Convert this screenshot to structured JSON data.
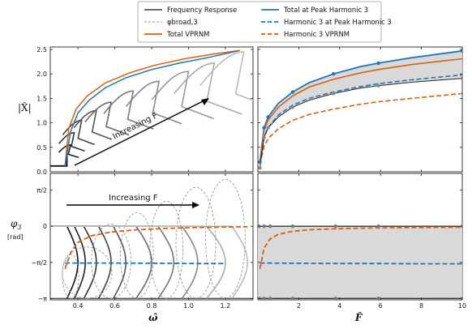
{
  "legend": {
    "items": [
      {
        "label": "Frequency Response",
        "color": "#5a5a5a",
        "dash": "solid"
      },
      {
        "label": "Total at Peak Harmonic 3",
        "color": "#1f77b4",
        "dash": "solid"
      },
      {
        "label": "φbroad,3",
        "color": "#9a9a9a",
        "dash": "dashed-thin"
      },
      {
        "label": "Harmonic 3 at Peak Harmonic 3",
        "color": "#1f77b4",
        "dash": "dashed"
      },
      {
        "label": "Total VPRNM",
        "color": "#d95f0e",
        "dash": "solid"
      },
      {
        "label": "Harmonic 3 VPRNM",
        "color": "#d95f0e",
        "dash": "dashed"
      }
    ]
  },
  "annotations": {
    "top_left": "Increasing F",
    "bottom_left": "Increasing F"
  },
  "colors": {
    "blue": "#1f77b4",
    "orange": "#d95f0e",
    "shade": "#d9d9d9"
  },
  "chart_data": [
    {
      "panel": "top-left",
      "type": "line",
      "xlabel": "ω̂",
      "ylabel": "|X̂|",
      "xlim": [
        0.25,
        1.35
      ],
      "ylim": [
        0,
        2.55
      ],
      "yticks": [
        "0.0",
        "0.5",
        "1.0",
        "1.5",
        "2.0",
        "2.5"
      ],
      "series": [
        {
          "name": "Total at Peak Harmonic 3",
          "x": [
            0.33,
            0.36,
            0.4,
            0.46,
            0.55,
            0.66,
            0.8,
            0.95,
            1.1,
            1.27
          ],
          "y": [
            0.12,
            0.82,
            1.2,
            1.46,
            1.72,
            1.92,
            2.09,
            2.22,
            2.33,
            2.47
          ]
        },
        {
          "name": "Total VPRNM",
          "x": [
            0.33,
            0.35,
            0.39,
            0.45,
            0.55,
            0.68,
            0.82,
            0.98,
            1.14,
            1.28
          ],
          "y": [
            0.12,
            0.88,
            1.28,
            1.55,
            1.82,
            2.02,
            2.18,
            2.31,
            2.41,
            2.48
          ]
        }
      ]
    },
    {
      "panel": "top-right",
      "type": "line",
      "xlabel": "F̂",
      "xlim": [
        0,
        10
      ],
      "ylim": [
        0,
        2.55
      ],
      "yticks": [
        "0.0",
        "0.5",
        "1.0",
        "1.5",
        "2.0",
        "2.5"
      ],
      "xticks": [
        "2",
        "4",
        "6",
        "8",
        "10"
      ],
      "series": [
        {
          "name": "Total at Peak Harmonic 3",
          "x": [
            0.1,
            0.3,
            0.5,
            1.0,
            1.7,
            2.5,
            3.7,
            5.0,
            5.9,
            7.5,
            10
          ],
          "y": [
            0.2,
            0.9,
            1.12,
            1.4,
            1.63,
            1.82,
            2.0,
            2.15,
            2.22,
            2.33,
            2.47
          ]
        },
        {
          "name": "Total VPRNM",
          "x": [
            0.1,
            0.3,
            0.5,
            1.0,
            1.7,
            2.5,
            3.7,
            5.0,
            5.9,
            7.5,
            10
          ],
          "y": [
            0.2,
            0.86,
            1.06,
            1.32,
            1.55,
            1.73,
            1.89,
            2.02,
            2.09,
            2.19,
            2.31
          ]
        },
        {
          "name": "Harmonic 3 at Peak Harmonic 3",
          "x": [
            0.1,
            0.3,
            0.5,
            1.0,
            1.7,
            2.5,
            3.7,
            5.0,
            5.9,
            7.5,
            10
          ],
          "y": [
            0.18,
            0.7,
            0.9,
            1.16,
            1.36,
            1.5,
            1.63,
            1.74,
            1.8,
            1.88,
            1.98
          ]
        },
        {
          "name": "Harmonic 3 VPRNM",
          "x": [
            0.1,
            0.3,
            0.5,
            1.0,
            1.7,
            2.5,
            3.7,
            5.0,
            5.9,
            7.5,
            10
          ],
          "y": [
            0.15,
            0.52,
            0.68,
            0.88,
            1.05,
            1.17,
            1.28,
            1.38,
            1.43,
            1.5,
            1.6
          ]
        },
        {
          "name": "Frequency Response",
          "x": [
            0.1,
            0.3,
            0.5,
            1.0,
            1.7,
            2.5,
            3.7,
            5.0,
            5.9,
            7.5,
            10
          ],
          "y": [
            0.08,
            0.7,
            0.9,
            1.12,
            1.32,
            1.46,
            1.6,
            1.71,
            1.76,
            1.83,
            1.91
          ]
        }
      ]
    },
    {
      "panel": "bottom-left",
      "type": "line",
      "xlabel": "ω̂",
      "ylabel": "φ3\n[rad]",
      "xlim": [
        0.25,
        1.35
      ],
      "ylim": [
        -3.2,
        2.3
      ],
      "xticks": [
        "0.4",
        "0.6",
        "0.8",
        "1.0",
        "1.2"
      ],
      "yticks": [
        "π/2",
        "0",
        "−π/2",
        "−π"
      ],
      "series": [
        {
          "name": "Total VPRNM",
          "x": [
            0.33,
            0.36,
            0.4,
            0.47,
            0.58,
            0.72,
            0.88,
            1.05,
            1.2,
            1.32
          ],
          "y": [
            -1.85,
            -1.15,
            -0.7,
            -0.42,
            -0.25,
            -0.15,
            -0.09,
            -0.05,
            -0.03,
            -0.02
          ]
        },
        {
          "name": "Harmonic 3 VPRNM",
          "x": [
            0.33,
            0.55,
            0.8,
            1.05,
            1.2
          ],
          "y": [
            -1.6,
            -1.6,
            -1.61,
            -1.62,
            -1.62
          ]
        }
      ]
    },
    {
      "panel": "bottom-right",
      "type": "line",
      "xlabel": "F̂",
      "xlim": [
        0,
        10
      ],
      "ylim": [
        -3.2,
        2.3
      ],
      "xticks": [
        "2",
        "4",
        "6",
        "8",
        "10"
      ],
      "series": [
        {
          "name": "Total VPRNM",
          "x": [
            0.1,
            0.3,
            0.6,
            1.0,
            1.7,
            2.5,
            3.7,
            5.0,
            6.0,
            8.0,
            10
          ],
          "y": [
            -1.85,
            -0.95,
            -0.55,
            -0.35,
            -0.22,
            -0.15,
            -0.11,
            -0.08,
            -0.07,
            -0.05,
            -0.04
          ]
        },
        {
          "name": "Harmonic 3 VPRNM",
          "x": [
            0.1,
            2,
            4,
            6,
            8,
            10
          ],
          "y": [
            -1.6,
            -1.61,
            -1.62,
            -1.62,
            -1.63,
            -1.63
          ]
        }
      ]
    }
  ]
}
